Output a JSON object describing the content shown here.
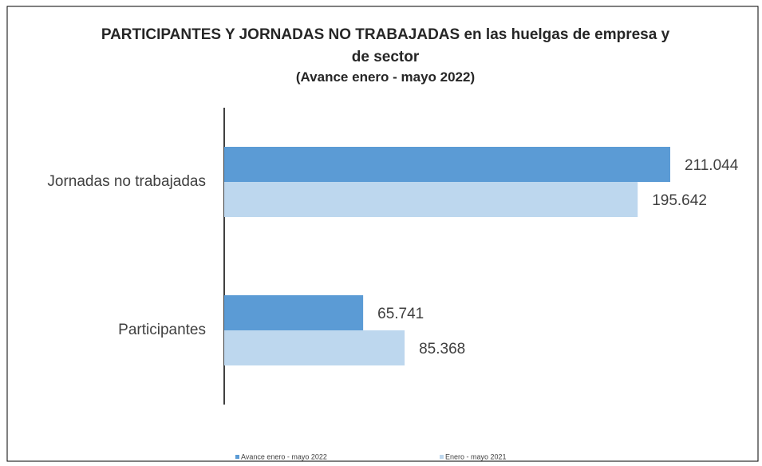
{
  "chart_data": {
    "type": "bar",
    "orientation": "horizontal",
    "title": "PARTICIPANTES  Y JORNADAS NO TRABAJADAS  en las huelgas de empresa y de sector",
    "subtitle": "(Avance enero - mayo 2022)",
    "categories": [
      "Jornadas no trabajadas",
      "Participantes"
    ],
    "series": [
      {
        "name": "Avance enero - mayo 2022",
        "color": "#5b9bd5",
        "values": [
          211044,
          65741
        ],
        "value_labels": [
          "211.044",
          "65.741"
        ]
      },
      {
        "name": "Enero - mayo 2021",
        "color": "#bdd7ee",
        "values": [
          195642,
          85368
        ],
        "value_labels": [
          "195.642",
          "85.368"
        ]
      }
    ],
    "legend": "bottom"
  }
}
